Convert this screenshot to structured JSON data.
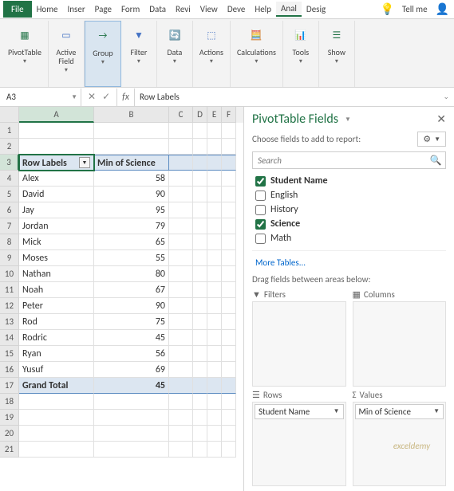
{
  "menu": {
    "items": [
      "File",
      "Home",
      "Inser",
      "Page",
      "Form",
      "Data",
      "Revi",
      "View",
      "Deve",
      "Help",
      "Anal",
      "Desig"
    ],
    "tellme": "Tell me",
    "active_index": 10
  },
  "ribbon": {
    "groups": [
      {
        "label": "PivotTable",
        "dd": true
      },
      {
        "label": "Active\nField",
        "dd": true
      },
      {
        "label": "Group",
        "dd": true,
        "active": true
      },
      {
        "label": "Filter",
        "dd": true
      },
      {
        "label": "Data",
        "dd": true
      },
      {
        "label": "Actions",
        "dd": true
      },
      {
        "label": "Calculations",
        "dd": true
      },
      {
        "label": "Tools",
        "dd": true
      },
      {
        "label": "Show",
        "dd": true
      }
    ],
    "icon_colors": {
      "primary": "#217346",
      "accent": "#4472c4",
      "warn": "#ed7d31"
    }
  },
  "namebox": {
    "ref": "A3"
  },
  "formula_bar": {
    "value": "Row Labels"
  },
  "grid": {
    "columns": [
      "A",
      "B",
      "C",
      "D",
      "E",
      "F"
    ],
    "active_cell": {
      "row": 3,
      "col": "A"
    },
    "header_row": {
      "row": 3,
      "A": "Row Labels",
      "B": "Min of Science"
    },
    "data_rows": [
      {
        "row": 4,
        "A": "Alex",
        "B": 58
      },
      {
        "row": 5,
        "A": "David",
        "B": 90
      },
      {
        "row": 6,
        "A": "Jay",
        "B": 95
      },
      {
        "row": 7,
        "A": "Jordan",
        "B": 79
      },
      {
        "row": 8,
        "A": "Mick",
        "B": 65
      },
      {
        "row": 9,
        "A": "Moses",
        "B": 55
      },
      {
        "row": 10,
        "A": "Nathan",
        "B": 80
      },
      {
        "row": 11,
        "A": "Noah",
        "B": 67
      },
      {
        "row": 12,
        "A": "Peter",
        "B": 90
      },
      {
        "row": 13,
        "A": "Rod",
        "B": 75
      },
      {
        "row": 14,
        "A": "Rodric",
        "B": 45
      },
      {
        "row": 15,
        "A": "Ryan",
        "B": 56
      },
      {
        "row": 16,
        "A": "Yusuf",
        "B": 69
      }
    ],
    "total_row": {
      "row": 17,
      "A": "Grand Total",
      "B": 45
    },
    "empty_rows": [
      1,
      2,
      18,
      19,
      20,
      21
    ]
  },
  "pane": {
    "title": "PivotTable Fields",
    "subtitle": "Choose fields to add to report:",
    "search_placeholder": "Search",
    "fields": [
      {
        "name": "Student Name",
        "checked": true
      },
      {
        "name": "English",
        "checked": false
      },
      {
        "name": "History",
        "checked": false
      },
      {
        "name": "Science",
        "checked": true
      },
      {
        "name": "Math",
        "checked": false
      }
    ],
    "more": "More Tables...",
    "areas_header": "Drag fields between areas below:",
    "areas": {
      "filters": {
        "label": "Filters",
        "items": []
      },
      "columns": {
        "label": "Columns",
        "items": []
      },
      "rows": {
        "label": "Rows",
        "items": [
          "Student Name"
        ]
      },
      "values": {
        "label": "Values",
        "items": [
          "Min of Science"
        ]
      }
    }
  },
  "watermark": "exceldemy"
}
